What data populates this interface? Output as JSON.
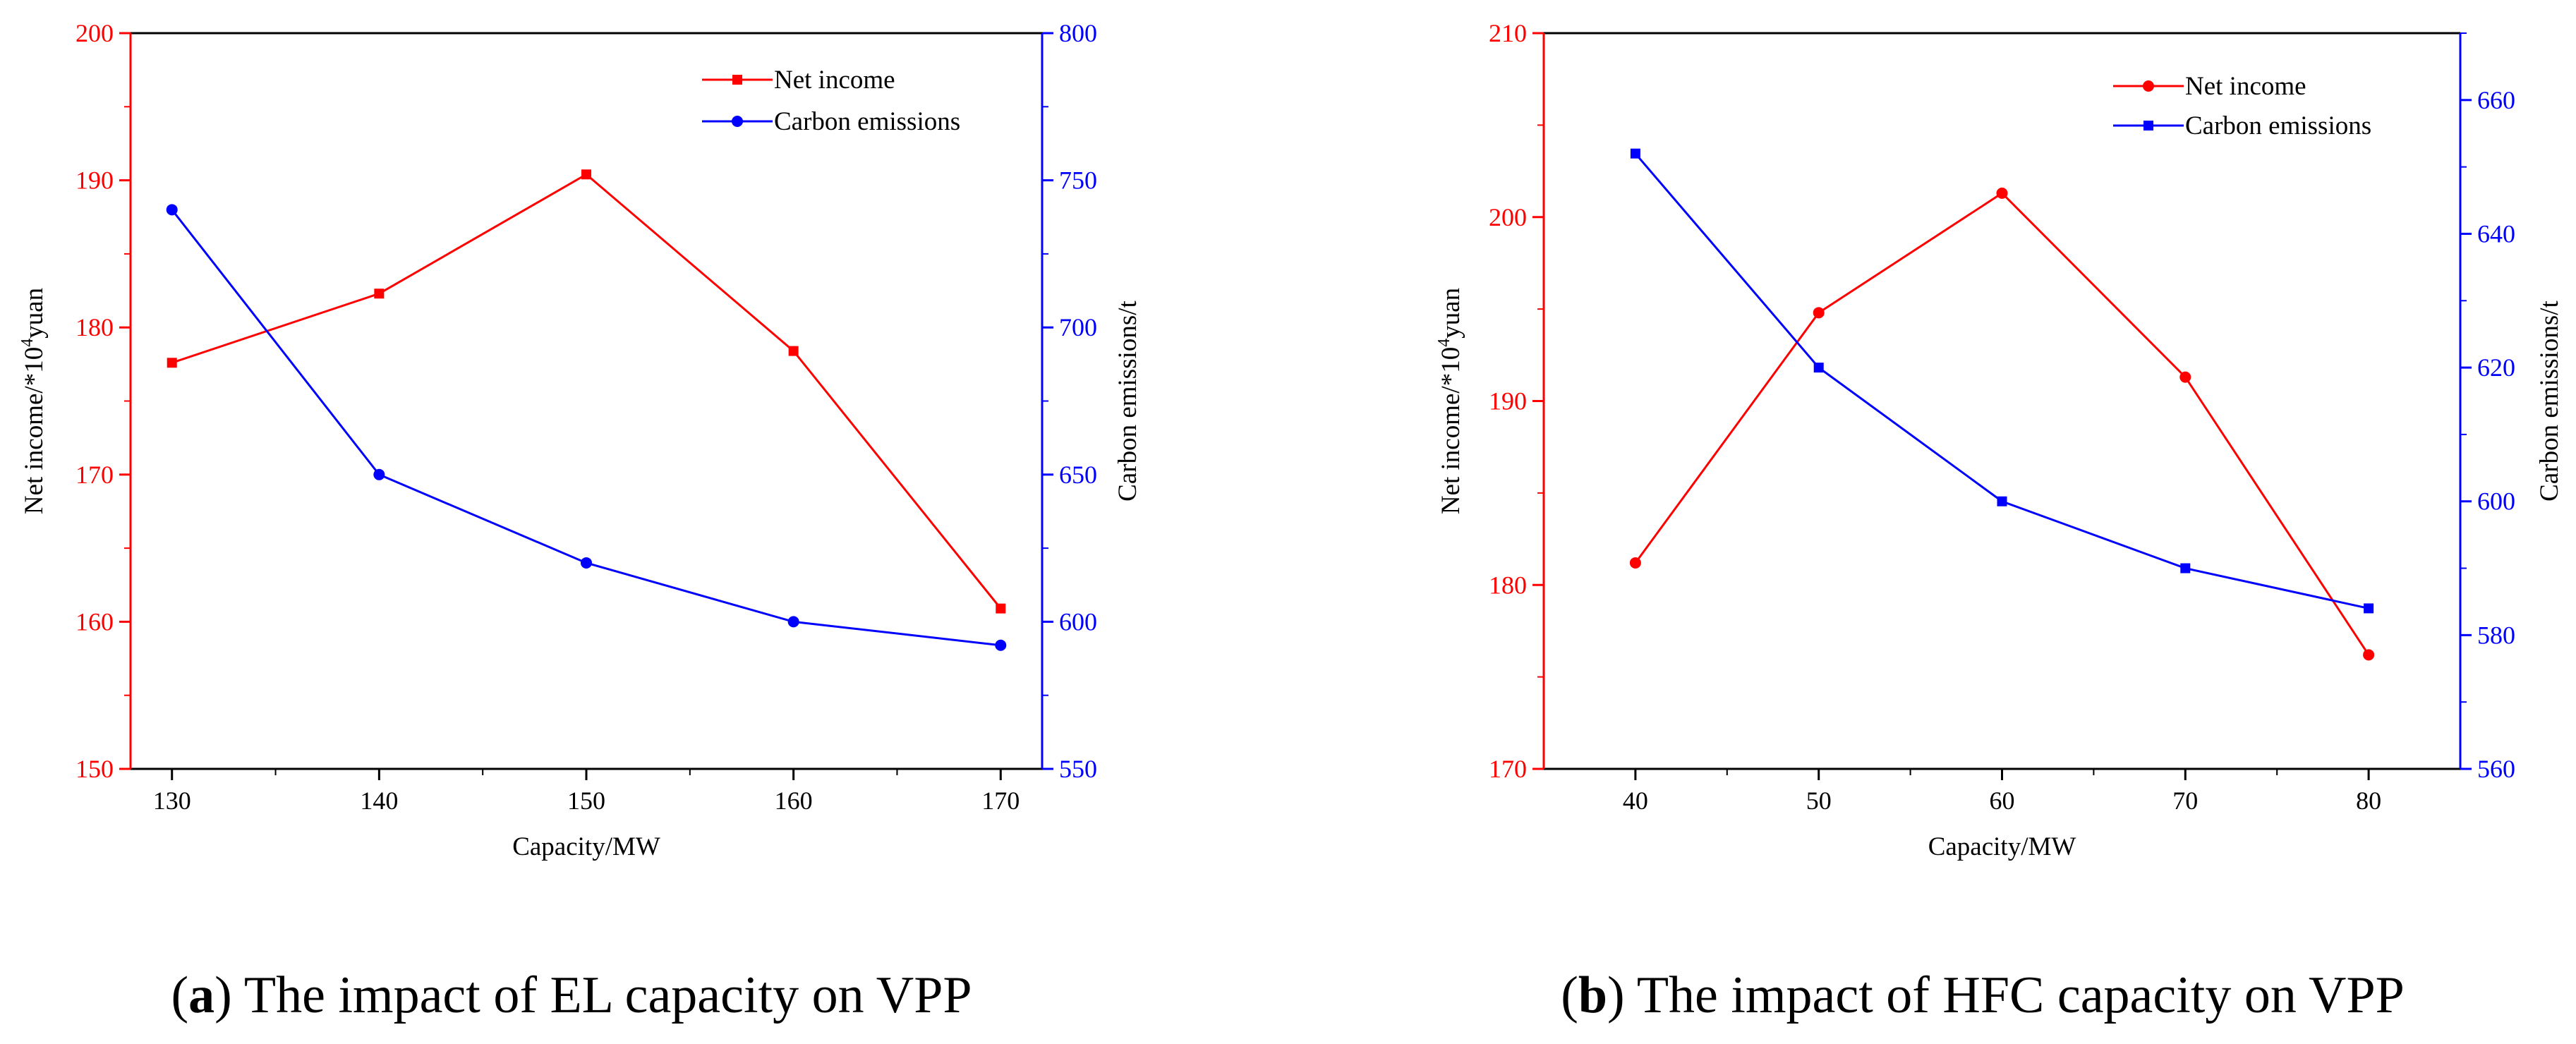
{
  "colors": {
    "red": "#ff0000",
    "blue": "#0000ff",
    "black": "#000000"
  },
  "chart_data": [
    {
      "type": "line",
      "caption_label": "a",
      "caption_text": "The impact of EL capacity on VPP",
      "xlabel": "Capacity/MW",
      "ylabel_left": "Net income/*10",
      "ylabel_left_sup": "4",
      "ylabel_left_tail": "yuan",
      "ylabel_right": "Carbon emissions/t",
      "x": [
        130,
        140,
        150,
        160,
        170
      ],
      "xlim": [
        128,
        172
      ],
      "xticks": [
        130,
        140,
        150,
        160,
        170
      ],
      "xticks_minor": [
        135,
        145,
        155,
        165
      ],
      "ylim_left": [
        150,
        200
      ],
      "yticks_left": [
        150,
        160,
        170,
        180,
        190,
        200
      ],
      "ylim_right": [
        550,
        800
      ],
      "yticks_right": [
        550,
        600,
        650,
        700,
        750,
        800
      ],
      "legend_position": "top-right",
      "series": [
        {
          "name": "Net income",
          "axis": "left",
          "color": "#ff0000",
          "marker": "square",
          "values": [
            177.6,
            182.3,
            190.4,
            178.4,
            160.9
          ]
        },
        {
          "name": "Carbon emissions",
          "axis": "right",
          "color": "#0000ff",
          "marker": "circle",
          "values": [
            740,
            650,
            620,
            600,
            592
          ]
        }
      ]
    },
    {
      "type": "line",
      "caption_label": "b",
      "caption_text": "The impact of HFC capacity on VPP",
      "xlabel": "Capacity/MW",
      "ylabel_left": "Net income/*10",
      "ylabel_left_sup": "4",
      "ylabel_left_tail": "yuan",
      "ylabel_right": "Carbon emissions/t",
      "x": [
        40,
        50,
        60,
        70,
        80
      ],
      "xlim": [
        35,
        85
      ],
      "xticks": [
        40,
        50,
        60,
        70,
        80
      ],
      "xticks_minor": [
        45,
        55,
        65,
        75
      ],
      "ylim_left": [
        170,
        210
      ],
      "yticks_left": [
        170,
        180,
        190,
        200,
        210
      ],
      "ylim_right": [
        560,
        670
      ],
      "yticks_right": [
        560,
        580,
        600,
        620,
        640,
        660
      ],
      "legend_position": "top-right",
      "series": [
        {
          "name": "Net income",
          "axis": "left",
          "color": "#ff0000",
          "marker": "circle",
          "values": [
            181.2,
            194.8,
            201.3,
            191.3,
            176.2
          ]
        },
        {
          "name": "Carbon emissions",
          "axis": "right",
          "color": "#0000ff",
          "marker": "square",
          "values": [
            652,
            620,
            600,
            590,
            584
          ]
        }
      ]
    }
  ]
}
